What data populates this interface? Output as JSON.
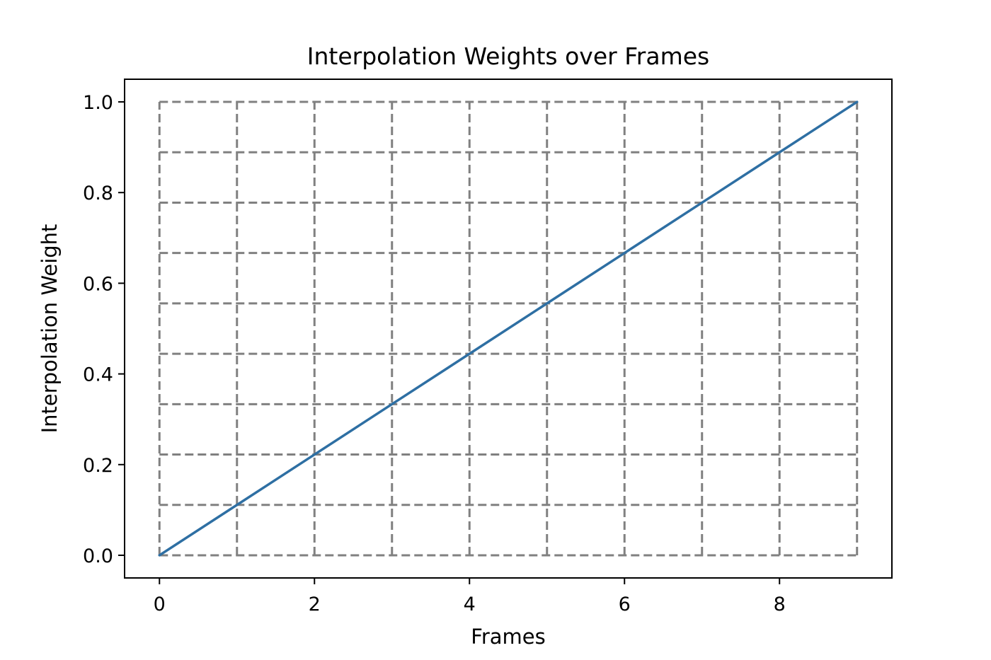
{
  "chart_data": {
    "type": "line",
    "title": "Interpolation Weights over Frames",
    "xlabel": "Frames",
    "ylabel": "Interpolation Weight",
    "xlim": [
      -0.45,
      9.45
    ],
    "ylim": [
      -0.05,
      1.05
    ],
    "xticks": [
      0,
      2,
      4,
      6,
      8
    ],
    "xtick_labels": [
      "0",
      "2",
      "4",
      "6",
      "8"
    ],
    "yticks": [
      0.0,
      0.2,
      0.4,
      0.6,
      0.8,
      1.0
    ],
    "ytick_labels": [
      "0.0",
      "0.2",
      "0.4",
      "0.6",
      "0.8",
      "1.0"
    ],
    "grid": {
      "style": "dashed",
      "color": "#808080",
      "x_lines": [
        0,
        1,
        2,
        3,
        4,
        5,
        6,
        7,
        8,
        9
      ],
      "y_lines": [
        0.0,
        0.1111,
        0.2222,
        0.3333,
        0.4444,
        0.5556,
        0.6667,
        0.7778,
        0.8889,
        1.0
      ]
    },
    "series": [
      {
        "color": "#2e6fa3",
        "x": [
          0,
          1,
          2,
          3,
          4,
          5,
          6,
          7,
          8,
          9
        ],
        "y": [
          0.0,
          0.1111,
          0.2222,
          0.3333,
          0.4444,
          0.5556,
          0.6667,
          0.7778,
          0.8889,
          1.0
        ]
      }
    ]
  }
}
